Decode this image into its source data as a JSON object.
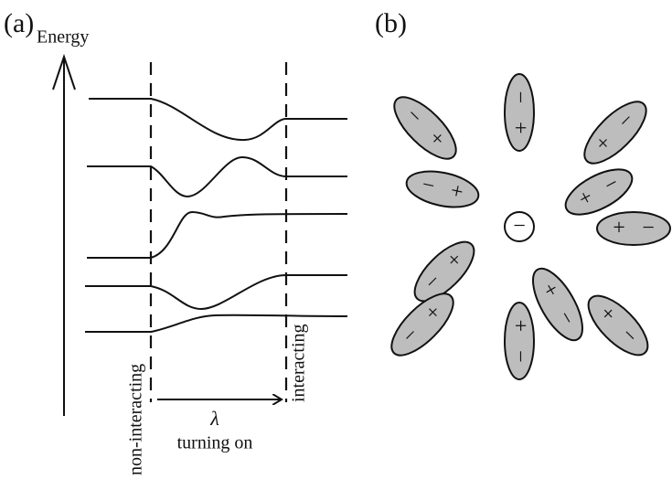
{
  "panel_a": {
    "label": "(a)",
    "axis_label": "Energy",
    "start_label": "non-interacting",
    "end_label": "interacting",
    "parameter": "λ",
    "parameter_caption": "turning on"
  },
  "panel_b": {
    "label": "(b)",
    "center_charge": "−",
    "dipoles": [
      {
        "signs": [
          "−",
          "+"
        ]
      },
      {
        "signs": [
          "+",
          "−"
        ]
      },
      {
        "signs": [
          "−",
          "+"
        ]
      },
      {
        "signs": [
          "−",
          "+"
        ]
      },
      {
        "signs": [
          "+",
          "−"
        ]
      },
      {
        "signs": [
          "+",
          "−"
        ]
      },
      {
        "signs": [
          "+",
          "−"
        ]
      },
      {
        "signs": [
          "−",
          "+"
        ]
      },
      {
        "signs": [
          "−",
          "+"
        ]
      },
      {
        "signs": [
          "+",
          "−"
        ]
      },
      {
        "signs": [
          "+",
          "−"
        ]
      }
    ]
  }
}
